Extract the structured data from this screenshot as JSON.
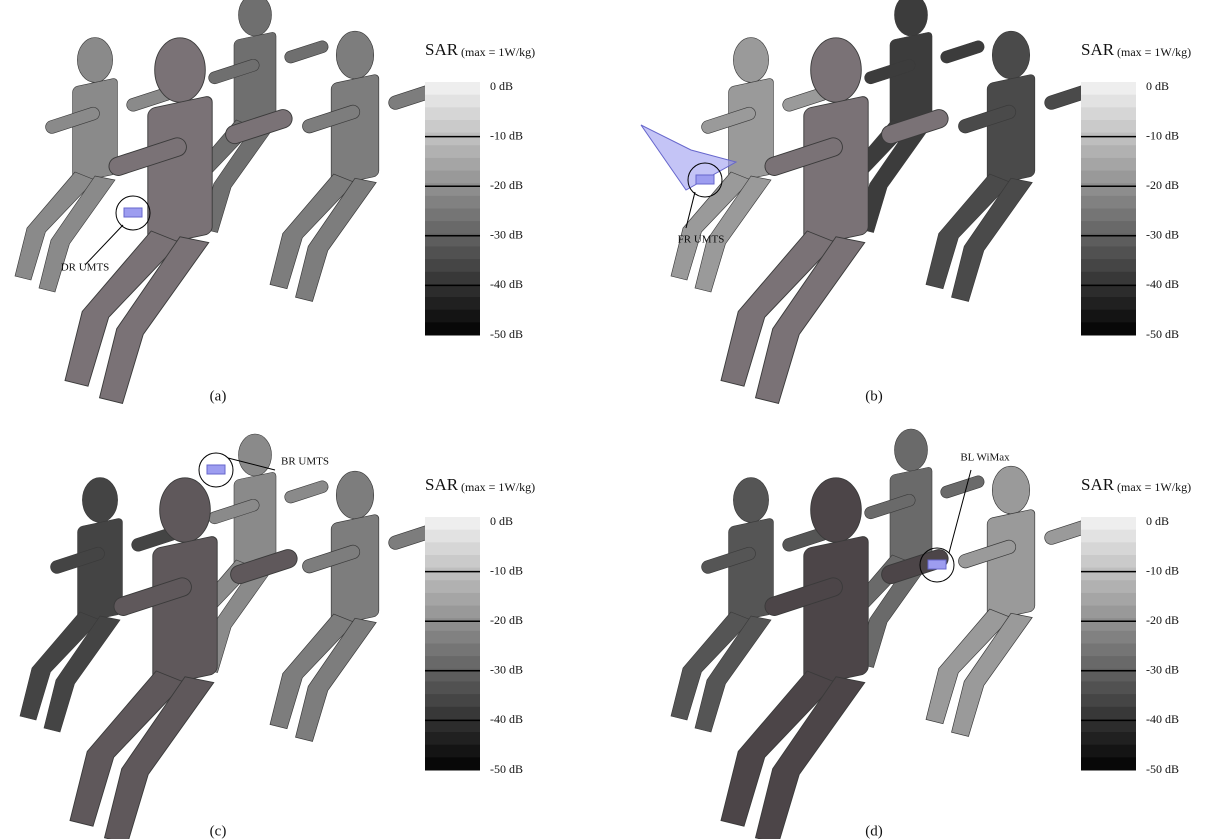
{
  "panels": [
    {
      "caption": "(a)",
      "annotation": "DR UMTS",
      "colorbar": {
        "title": "SAR",
        "unit": "(max = 1W/kg)",
        "ticks": [
          "0 dB",
          "-10 dB",
          "-20 dB",
          "-30 dB",
          "-40 dB",
          "-50 dB"
        ]
      }
    },
    {
      "caption": "(b)",
      "annotation": "FR UMTS",
      "colorbar": {
        "title": "SAR",
        "unit": "(max = 1W/kg)",
        "ticks": [
          "0 dB",
          "-10 dB",
          "-20 dB",
          "-30 dB",
          "-40 dB",
          "-50 dB"
        ]
      }
    },
    {
      "caption": "(c)",
      "annotation": "BR UMTS",
      "colorbar": {
        "title": "SAR",
        "unit": "(max = 1W/kg)",
        "ticks": [
          "0 dB",
          "-10 dB",
          "-20 dB",
          "-30 dB",
          "-40 dB",
          "-50 dB"
        ]
      }
    },
    {
      "caption": "(d)",
      "annotation": "BL WiMax",
      "colorbar": {
        "title": "SAR",
        "unit": "(max = 1W/kg)",
        "ticks": [
          "0 dB",
          "-10 dB",
          "-20 dB",
          "-30 dB",
          "-40 dB",
          "-50 dB"
        ]
      }
    }
  ]
}
